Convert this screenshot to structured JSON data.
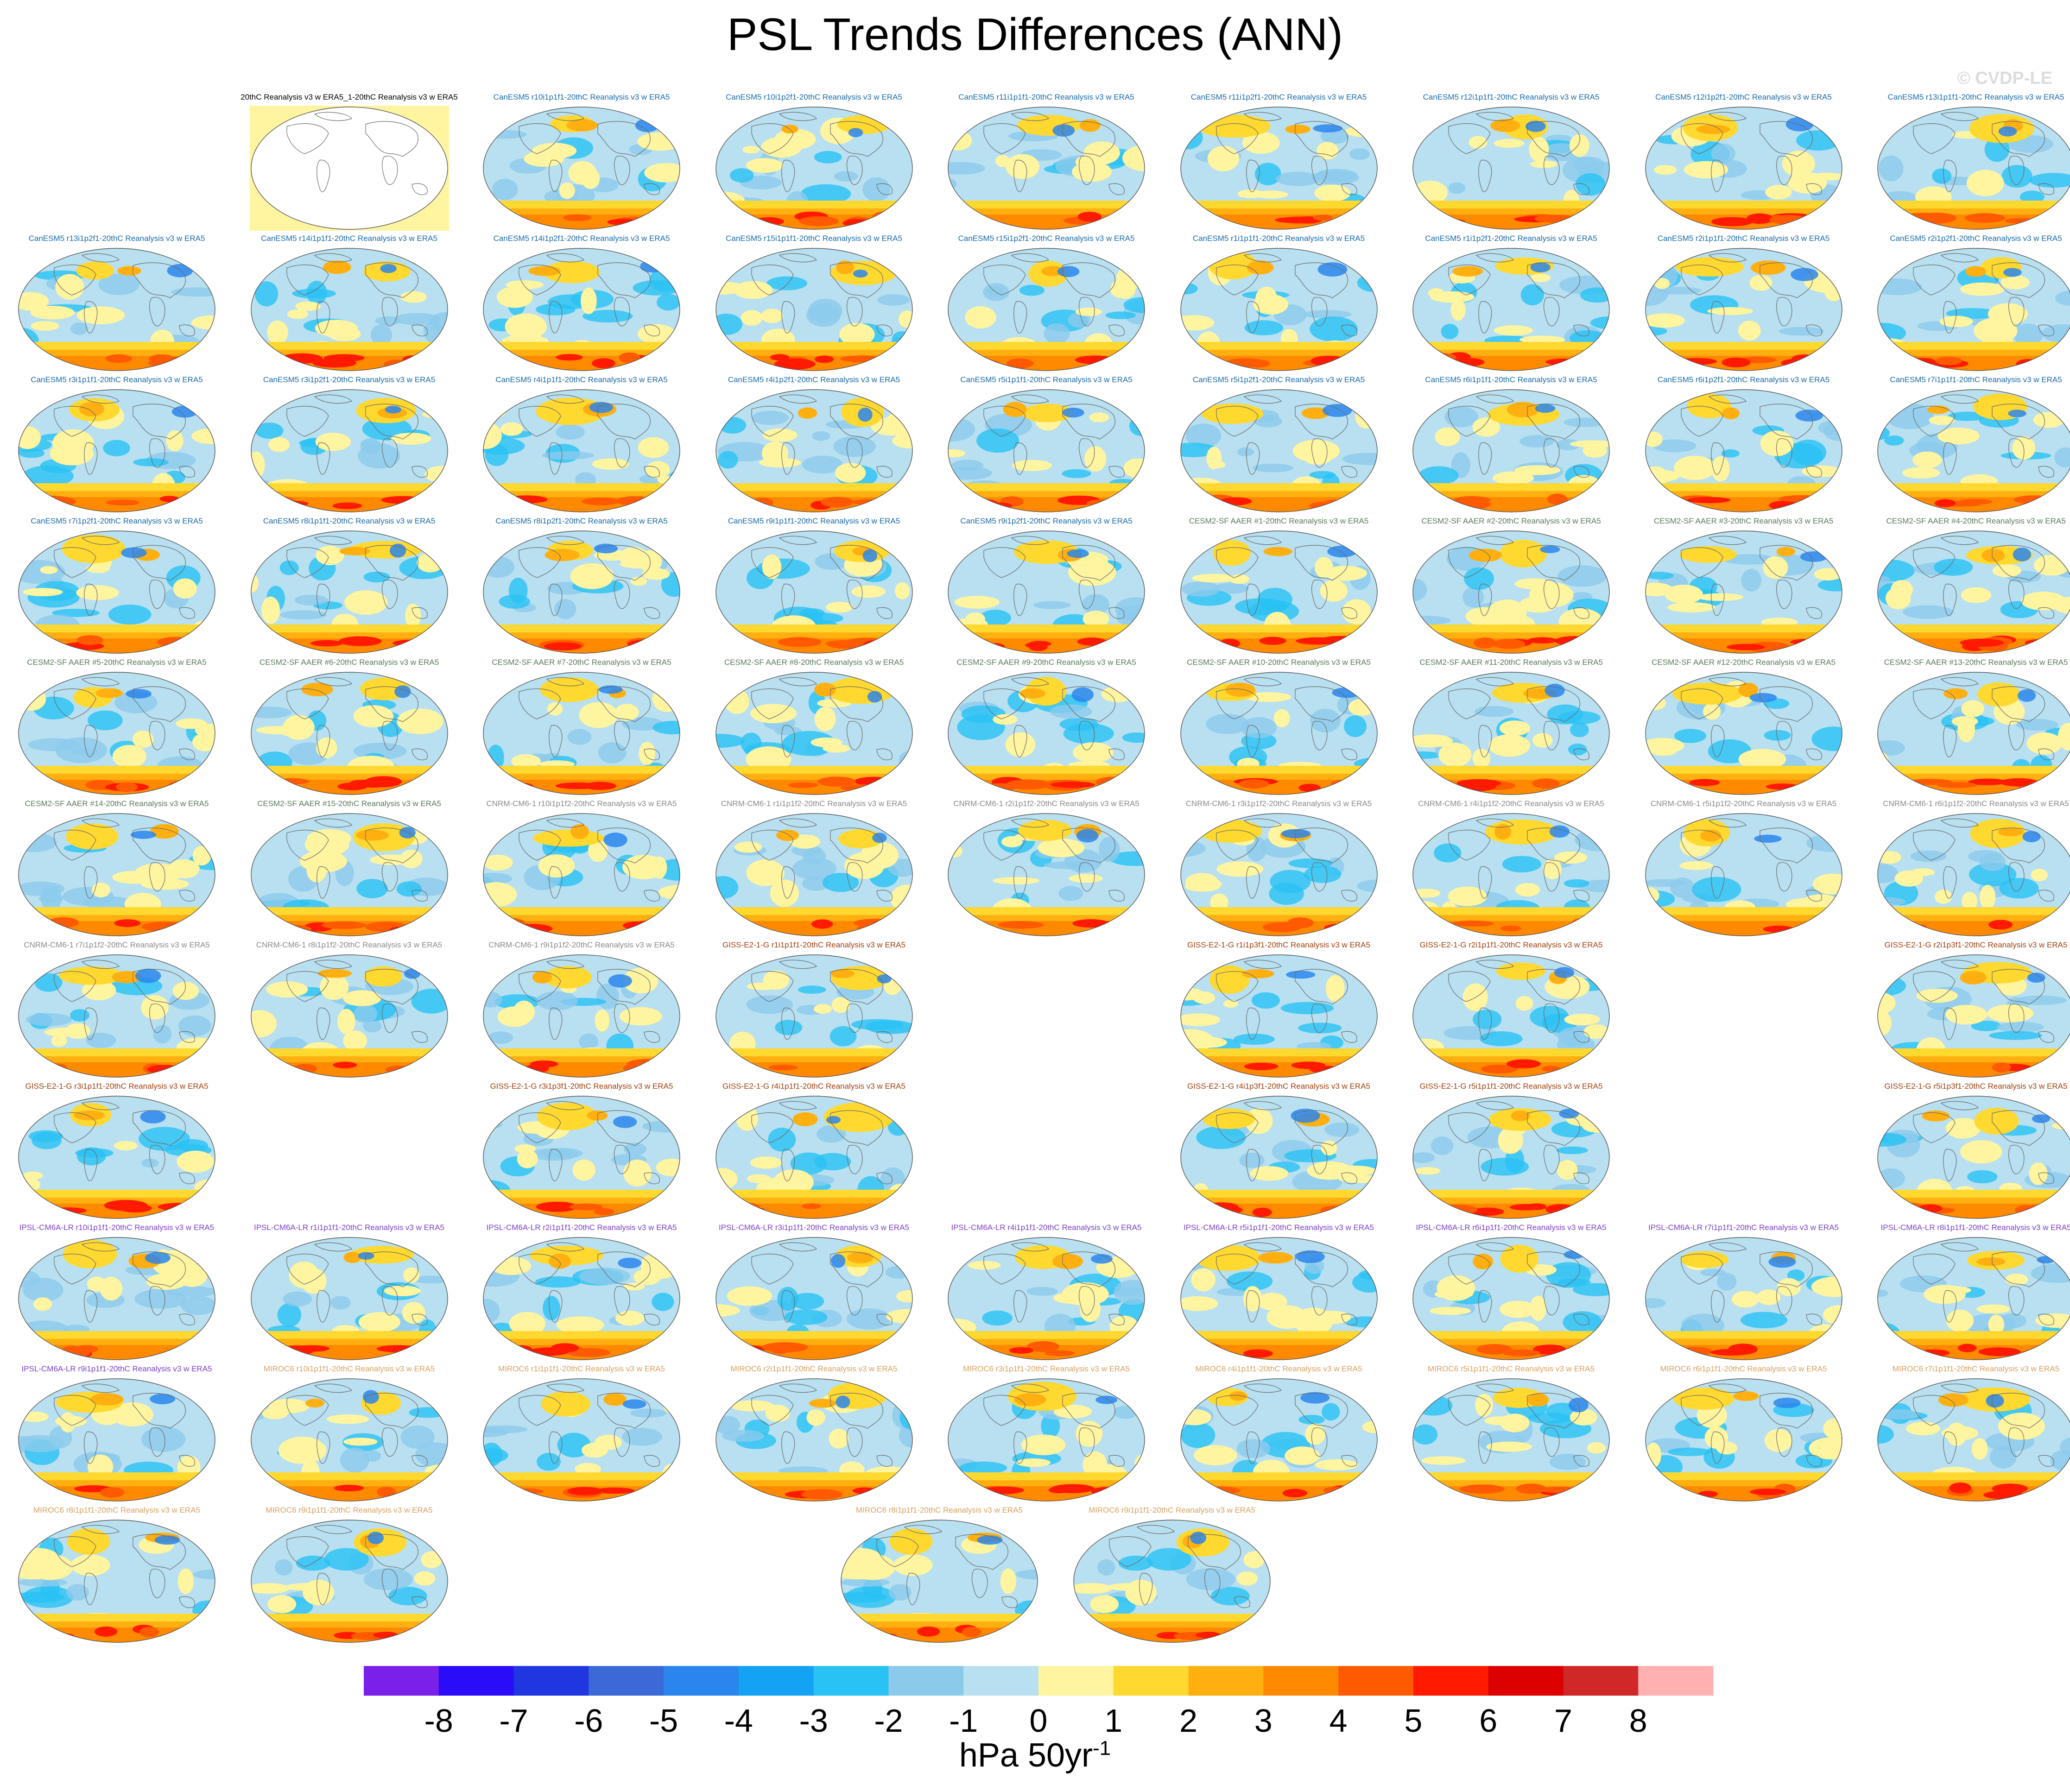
{
  "title": "PSL Trends Differences (ANN)",
  "watermark": "© CVDP-LE",
  "colorbar": {
    "colors": [
      "#7b20e8",
      "#2a0cf8",
      "#2036e0",
      "#3b6ad8",
      "#2a86ec",
      "#14a2f4",
      "#28c2f4",
      "#8ccaec",
      "#b8e0f0",
      "#fff4a0",
      "#ffd830",
      "#ffb010",
      "#ff8a00",
      "#ff5a00",
      "#ff1a00",
      "#dc0000",
      "#d02828",
      "#ffb0b0"
    ],
    "tick_labels": [
      "-8",
      "-7",
      "-6",
      "-5",
      "-4",
      "-3",
      "-2",
      "-1",
      "0",
      "1",
      "2",
      "3",
      "4",
      "5",
      "6",
      "7",
      "8"
    ],
    "units_main": "hPa 50yr",
    "units_exp": "-1"
  },
  "model_colors": {
    "obs": "#000000",
    "CanESM5": "#1a6aa8",
    "CESM2": "#5a7a5a",
    "CNRM": "#8a8a8a",
    "GISS": "#a04010",
    "IPSL": "#7a40c8",
    "MIROC6": "#d8a060"
  },
  "panels": [
    {
      "label": "20thC Reanalysis v3 w ERA5_1-20thC Reanalysis v3 w ERA5",
      "model": "obs",
      "style": "obs"
    },
    {
      "label": "CanESM5 r10i1p1f1-20thC Reanalysis v3 w ERA5",
      "model": "CanESM5"
    },
    {
      "label": "CanESM5 r10i1p2f1-20thC Reanalysis v3 w ERA5",
      "model": "CanESM5"
    },
    {
      "label": "CanESM5 r11i1p1f1-20thC Reanalysis v3 w ERA5",
      "model": "CanESM5"
    },
    {
      "label": "CanESM5 r11i1p2f1-20thC Reanalysis v3 w ERA5",
      "model": "CanESM5"
    },
    {
      "label": "CanESM5 r12i1p1f1-20thC Reanalysis v3 w ERA5",
      "model": "CanESM5"
    },
    {
      "label": "CanESM5 r12i1p2f1-20thC Reanalysis v3 w ERA5",
      "model": "CanESM5"
    },
    {
      "label": "CanESM5 r13i1p1f1-20thC Reanalysis v3 w ERA5",
      "model": "CanESM5"
    },
    {
      "label": "CanESM5 r13i1p2f1-20thC Reanalysis v3 w ERA5",
      "model": "CanESM5"
    },
    {
      "label": "CanESM5 r14i1p1f1-20thC Reanalysis v3 w ERA5",
      "model": "CanESM5"
    },
    {
      "label": "CanESM5 r14i1p2f1-20thC Reanalysis v3 w ERA5",
      "model": "CanESM5"
    },
    {
      "label": "CanESM5 r15i1p1f1-20thC Reanalysis v3 w ERA5",
      "model": "CanESM5"
    },
    {
      "label": "CanESM5 r15i1p2f1-20thC Reanalysis v3 w ERA5",
      "model": "CanESM5"
    },
    {
      "label": "CanESM5 r1i1p1f1-20thC Reanalysis v3 w ERA5",
      "model": "CanESM5"
    },
    {
      "label": "CanESM5 r1i1p2f1-20thC Reanalysis v3 w ERA5",
      "model": "CanESM5"
    },
    {
      "label": "CanESM5 r2i1p1f1-20thC Reanalysis v3 w ERA5",
      "model": "CanESM5"
    },
    {
      "label": "CanESM5 r2i1p2f1-20thC Reanalysis v3 w ERA5",
      "model": "CanESM5"
    },
    {
      "label": "CanESM5 r3i1p1f1-20thC Reanalysis v3 w ERA5",
      "model": "CanESM5"
    },
    {
      "label": "CanESM5 r3i1p2f1-20thC Reanalysis v3 w ERA5",
      "model": "CanESM5"
    },
    {
      "label": "CanESM5 r4i1p1f1-20thC Reanalysis v3 w ERA5",
      "model": "CanESM5"
    },
    {
      "label": "CanESM5 r4i1p2f1-20thC Reanalysis v3 w ERA5",
      "model": "CanESM5"
    },
    {
      "label": "CanESM5 r5i1p1f1-20thC Reanalysis v3 w ERA5",
      "model": "CanESM5"
    },
    {
      "label": "CanESM5 r5i1p2f1-20thC Reanalysis v3 w ERA5",
      "model": "CanESM5"
    },
    {
      "label": "CanESM5 r6i1p1f1-20thC Reanalysis v3 w ERA5",
      "model": "CanESM5"
    },
    {
      "label": "CanESM5 r6i1p2f1-20thC Reanalysis v3 w ERA5",
      "model": "CanESM5"
    },
    {
      "label": "CanESM5 r7i1p1f1-20thC Reanalysis v3 w ERA5",
      "model": "CanESM5"
    },
    {
      "label": "CanESM5 r7i1p2f1-20thC Reanalysis v3 w ERA5",
      "model": "CanESM5"
    },
    {
      "label": "CanESM5 r8i1p1f1-20thC Reanalysis v3 w ERA5",
      "model": "CanESM5"
    },
    {
      "label": "CanESM5 r8i1p2f1-20thC Reanalysis v3 w ERA5",
      "model": "CanESM5"
    },
    {
      "label": "CanESM5 r9i1p1f1-20thC Reanalysis v3 w ERA5",
      "model": "CanESM5"
    },
    {
      "label": "CanESM5 r9i1p2f1-20thC Reanalysis v3 w ERA5",
      "model": "CanESM5"
    },
    {
      "label": "CESM2-SF AAER #1-20thC Reanalysis v3 w ERA5",
      "model": "CESM2"
    },
    {
      "label": "CESM2-SF AAER #2-20thC Reanalysis v3 w ERA5",
      "model": "CESM2"
    },
    {
      "label": "CESM2-SF AAER #3-20thC Reanalysis v3 w ERA5",
      "model": "CESM2"
    },
    {
      "label": "CESM2-SF AAER #4-20thC Reanalysis v3 w ERA5",
      "model": "CESM2"
    },
    {
      "label": "CESM2-SF AAER #5-20thC Reanalysis v3 w ERA5",
      "model": "CESM2"
    },
    {
      "label": "CESM2-SF AAER #6-20thC Reanalysis v3 w ERA5",
      "model": "CESM2"
    },
    {
      "label": "CESM2-SF AAER #7-20thC Reanalysis v3 w ERA5",
      "model": "CESM2"
    },
    {
      "label": "CESM2-SF AAER #8-20thC Reanalysis v3 w ERA5",
      "model": "CESM2"
    },
    {
      "label": "CESM2-SF AAER #9-20thC Reanalysis v3 w ERA5",
      "model": "CESM2"
    },
    {
      "label": "CESM2-SF AAER #10-20thC Reanalysis v3 w ERA5",
      "model": "CESM2"
    },
    {
      "label": "CESM2-SF AAER #11-20thC Reanalysis v3 w ERA5",
      "model": "CESM2"
    },
    {
      "label": "CESM2-SF AAER #12-20thC Reanalysis v3 w ERA5",
      "model": "CESM2"
    },
    {
      "label": "CESM2-SF AAER #13-20thC Reanalysis v3 w ERA5",
      "model": "CESM2"
    },
    {
      "label": "CESM2-SF AAER #14-20thC Reanalysis v3 w ERA5",
      "model": "CESM2"
    },
    {
      "label": "CESM2-SF AAER #15-20thC Reanalysis v3 w ERA5",
      "model": "CESM2"
    },
    {
      "label": "CNRM-CM6-1 r10i1p1f2-20thC Reanalysis v3 w ERA5",
      "model": "CNRM"
    },
    {
      "label": "CNRM-CM6-1 r1i1p1f2-20thC Reanalysis v3 w ERA5",
      "model": "CNRM"
    },
    {
      "label": "CNRM-CM6-1 r2i1p1f2-20thC Reanalysis v3 w ERA5",
      "model": "CNRM"
    },
    {
      "label": "CNRM-CM6-1 r3i1p1f2-20thC Reanalysis v3 w ERA5",
      "model": "CNRM"
    },
    {
      "label": "CNRM-CM6-1 r4i1p1f2-20thC Reanalysis v3 w ERA5",
      "model": "CNRM"
    },
    {
      "label": "CNRM-CM6-1 r5i1p1f2-20thC Reanalysis v3 w ERA5",
      "model": "CNRM"
    },
    {
      "label": "CNRM-CM6-1 r6i1p1f2-20thC Reanalysis v3 w ERA5",
      "model": "CNRM"
    },
    {
      "label": "CNRM-CM6-1 r7i1p1f2-20thC Reanalysis v3 w ERA5",
      "model": "CNRM"
    },
    {
      "label": "CNRM-CM6-1 r8i1p1f2-20thC Reanalysis v3 w ERA5",
      "model": "CNRM"
    },
    {
      "label": "CNRM-CM6-1 r9i1p1f2-20thC Reanalysis v3 w ERA5",
      "model": "CNRM"
    },
    {
      "label": "GISS-E2-1-G r1i1p1f1-20thC Reanalysis v3 w ERA5",
      "model": "GISS"
    },
    null,
    {
      "label": "GISS-E2-1-G r1i1p3f1-20thC Reanalysis v3 w ERA5",
      "model": "GISS"
    },
    {
      "label": "GISS-E2-1-G r2i1p1f1-20thC Reanalysis v3 w ERA5",
      "model": "GISS"
    },
    null,
    {
      "label": "GISS-E2-1-G r2i1p3f1-20thC Reanalysis v3 w ERA5",
      "model": "GISS"
    },
    {
      "label": "GISS-E2-1-G r3i1p1f1-20thC Reanalysis v3 w ERA5",
      "model": "GISS"
    },
    null,
    {
      "label": "GISS-E2-1-G r3i1p3f1-20thC Reanalysis v3 w ERA5",
      "model": "GISS"
    },
    {
      "label": "GISS-E2-1-G r4i1p1f1-20thC Reanalysis v3 w ERA5",
      "model": "GISS"
    },
    null,
    {
      "label": "GISS-E2-1-G r4i1p3f1-20thC Reanalysis v3 w ERA5",
      "model": "GISS"
    },
    {
      "label": "GISS-E2-1-G r5i1p1f1-20thC Reanalysis v3 w ERA5",
      "model": "GISS"
    },
    null,
    {
      "label": "GISS-E2-1-G r5i1p3f1-20thC Reanalysis v3 w ERA5",
      "model": "GISS"
    },
    {
      "label": "IPSL-CM6A-LR r10i1p1f1-20thC Reanalysis v3 w ERA5",
      "model": "IPSL"
    },
    {
      "label": "IPSL-CM6A-LR r1i1p1f1-20thC Reanalysis v3 w ERA5",
      "model": "IPSL"
    },
    {
      "label": "IPSL-CM6A-LR r2i1p1f1-20thC Reanalysis v3 w ERA5",
      "model": "IPSL"
    },
    {
      "label": "IPSL-CM6A-LR r3i1p1f1-20thC Reanalysis v3 w ERA5",
      "model": "IPSL"
    },
    {
      "label": "IPSL-CM6A-LR r4i1p1f1-20thC Reanalysis v3 w ERA5",
      "model": "IPSL"
    },
    {
      "label": "IPSL-CM6A-LR r5i1p1f1-20thC Reanalysis v3 w ERA5",
      "model": "IPSL"
    },
    {
      "label": "IPSL-CM6A-LR r6i1p1f1-20thC Reanalysis v3 w ERA5",
      "model": "IPSL"
    },
    {
      "label": "IPSL-CM6A-LR r7i1p1f1-20thC Reanalysis v3 w ERA5",
      "model": "IPSL"
    },
    {
      "label": "IPSL-CM6A-LR r8i1p1f1-20thC Reanalysis v3 w ERA5",
      "model": "IPSL"
    },
    {
      "label": "IPSL-CM6A-LR r9i1p1f1-20thC Reanalysis v3 w ERA5",
      "model": "IPSL"
    },
    {
      "label": "MIROC6 r10i1p1f1-20thC Reanalysis v3 w ERA5",
      "model": "MIROC6"
    },
    {
      "label": "MIROC6 r1i1p1f1-20thC Reanalysis v3 w ERA5",
      "model": "MIROC6"
    },
    {
      "label": "MIROC6 r2i1p1f1-20thC Reanalysis v3 w ERA5",
      "model": "MIROC6"
    },
    {
      "label": "MIROC6 r3i1p1f1-20thC Reanalysis v3 w ERA5",
      "model": "MIROC6"
    },
    {
      "label": "MIROC6 r4i1p1f1-20thC Reanalysis v3 w ERA5",
      "model": "MIROC6"
    },
    {
      "label": "MIROC6 r5i1p1f1-20thC Reanalysis v3 w ERA5",
      "model": "MIROC6"
    },
    {
      "label": "MIROC6 r6i1p1f1-20thC Reanalysis v3 w ERA5",
      "model": "MIROC6"
    },
    {
      "label": "MIROC6 r7i1p1f1-20thC Reanalysis v3 w ERA5",
      "model": "MIROC6"
    },
    {
      "label": "MIROC6 r8i1p1f1-20thC Reanalysis v3 w ERA5",
      "model": "MIROC6"
    },
    {
      "label": "MIROC6 r9i1p1f1-20thC Reanalysis v3 w ERA5",
      "model": "MIROC6"
    }
  ]
}
